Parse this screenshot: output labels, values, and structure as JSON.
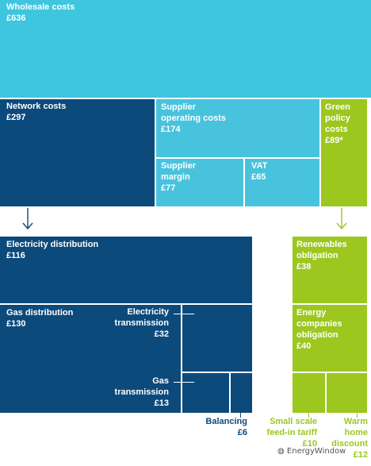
{
  "chart_data": {
    "type": "treemap",
    "currency": "£",
    "colors": {
      "wholesale": "#3ec6df",
      "network": "#0c4a7c",
      "supplier": "#48c3dd",
      "green": "#9cc71f",
      "line": "#ffffff"
    },
    "top": [
      {
        "name": "Wholesale costs",
        "value": "£636"
      },
      {
        "name": "Network costs",
        "value": "£297"
      },
      {
        "name": "Supplier operating costs",
        "value": "£174"
      },
      {
        "name": "Supplier margin",
        "value": "£77"
      },
      {
        "name": "VAT",
        "value": "£65"
      },
      {
        "name": "Green policy costs",
        "value": "£89*"
      }
    ],
    "network_breakdown": [
      {
        "name": "Electricity distribution",
        "value": "£116"
      },
      {
        "name": "Gas distribution",
        "value": "£130"
      },
      {
        "name": "Electricity transmission",
        "value": "£32"
      },
      {
        "name": "Gas transmission",
        "value": "£13"
      },
      {
        "name": "Balancing",
        "value": "£6"
      }
    ],
    "green_breakdown": [
      {
        "name": "Renewables obligation",
        "value": "£38"
      },
      {
        "name": "Energy companies obligation",
        "value": "£40"
      },
      {
        "name": "Small scale feed-in tariff",
        "value": "£10"
      },
      {
        "name": "Warm home discount",
        "value": "£12"
      }
    ]
  },
  "watermark": "EnergyWindow"
}
